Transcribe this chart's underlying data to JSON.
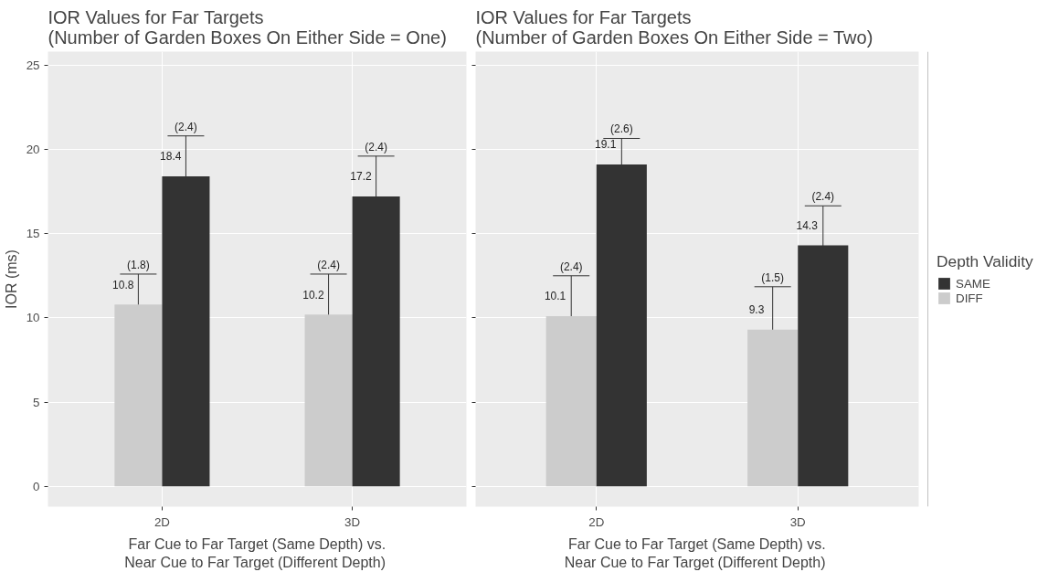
{
  "chart_data": [
    {
      "type": "bar",
      "title": "IOR Values for Far Targets\n(Number of Garden Boxes On Either Side = One)",
      "xlabel": "Far Cue to Far Target (Same Depth) vs.\n Near Cue to Far Target (Different Depth)",
      "ylabel": "IOR (ms)",
      "categories": [
        "2D",
        "3D"
      ],
      "series": [
        {
          "color": "#cccccc",
          "values": [
            10.8,
            10.2
          ],
          "errors": [
            1.8,
            2.4
          ]
        },
        {
          "color": "#333333",
          "values": [
            18.4,
            17.2
          ],
          "errors": [
            2.4,
            2.4
          ]
        }
      ],
      "ylim": [
        -1.2,
        25.8
      ],
      "yticks": [
        0,
        5,
        10,
        15,
        20,
        25
      ],
      "grid": true,
      "data_labels": true,
      "annotations": [
        "(1.8)",
        "(2.4)",
        "(2.4)",
        "(2.4)"
      ]
    },
    {
      "type": "bar",
      "title": "IOR Values for Far Targets\n(Number of Garden Boxes On Either Side = Two)",
      "xlabel": "Far Cue to Far Target (Same Depth) vs.\n Near Cue to Far Target (Different Depth)",
      "categories": [
        "2D",
        "3D"
      ],
      "series": [
        {
          "name": "DIFF",
          "color": "#cccccc",
          "values": [
            10.1,
            9.3
          ],
          "errors": [
            2.4,
            2.55
          ]
        },
        {
          "name": "SAME",
          "color": "#333333",
          "values": [
            19.1,
            14.3
          ],
          "errors": [
            1.55,
            2.35
          ]
        }
      ],
      "ylim": [
        -1.2,
        25.8
      ],
      "yticks": [
        0,
        5,
        10,
        15,
        20,
        25
      ],
      "grid": true,
      "data_labels": true,
      "legend": "right",
      "legend_title": "Depth Validity",
      "tick_labels": "x",
      "annotations": [
        "(2.4)",
        "(2.6)",
        "(1.5)",
        "(2.4)"
      ]
    }
  ]
}
